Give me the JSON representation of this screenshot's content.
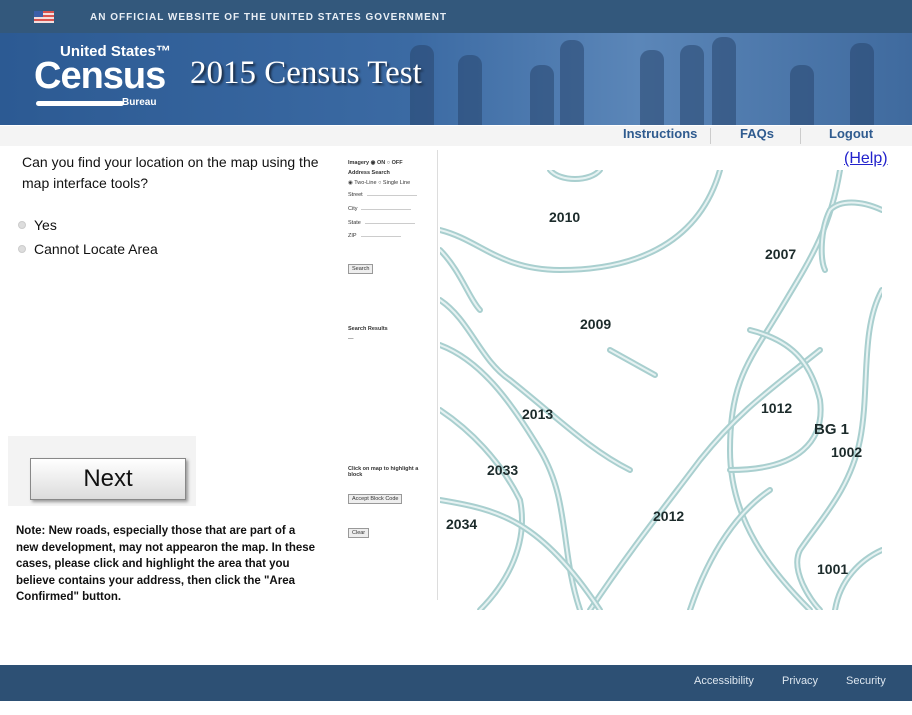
{
  "header": {
    "official_text": "AN OFFICIAL WEBSITE OF THE UNITED STATES GOVERNMENT",
    "logo": {
      "line1": "United States™",
      "line2": "Census",
      "line3": "Bureau"
    },
    "title": "2015 Census Test"
  },
  "nav": {
    "instructions": "Instructions",
    "faqs": "FAQs",
    "logout": "Logout"
  },
  "question": {
    "text": "Can you find your location on the map using the map interface tools?",
    "options": [
      "Yes",
      "Cannot Locate Area"
    ]
  },
  "next_label": "Next",
  "note": "Note: New roads, especially those that are part of a new development, may not appearon the map.  In these cases, please click and highlight the area that you believe contains your address, then click the \"Area Confirmed\" button.",
  "help_label": "(Help)",
  "side_panel": {
    "imagery": "Imagery ◉ ON ○ OFF",
    "address_search": "Address Search",
    "line_mode": "◉ Two-Line ○ Single Line",
    "street": "Street",
    "city": "City",
    "state": "State",
    "zip": "ZIP",
    "search_button": "Search",
    "results_title": "Search Results",
    "results_value": "—",
    "click_hint": "Click on map to highlight a block",
    "accept_button": "Accept Block Code",
    "clear_button": "Clear"
  },
  "map": {
    "road_color": "#a9cfcf",
    "labels": [
      "2010",
      "2007",
      "2009",
      "1012",
      "BG 1",
      "1002",
      "2013",
      "2033",
      "2012",
      "2034",
      "1001"
    ]
  },
  "footer": {
    "accessibility": "Accessibility",
    "privacy": "Privacy",
    "security": "Security"
  }
}
